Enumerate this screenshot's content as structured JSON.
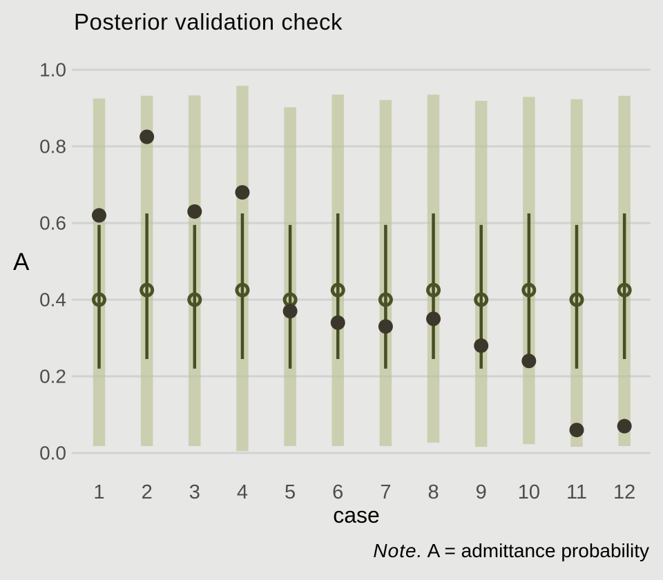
{
  "title": "Posterior validation check",
  "y_axis": {
    "label": "A"
  },
  "x_axis": {
    "label": "case"
  },
  "note": {
    "prefix_italic": "Note.",
    "text": " A = admittance probability"
  },
  "colors": {
    "background": "#e7e7e6",
    "gridline": "#d2d2d2",
    "outer_interval_bar": "#bcc194",
    "inner_interval_line": "#454e24",
    "median_circle": "#4a5226",
    "observed_dot": "#3b382b",
    "tick_text": "#4d4d4d",
    "title_text": "#0a0a0a"
  },
  "chart_data": {
    "type": "interval-dot",
    "title": "Posterior validation check",
    "xlabel": "case",
    "ylabel": "A",
    "ylim": [
      0,
      1
    ],
    "grid": true,
    "x": [
      1,
      2,
      3,
      4,
      5,
      6,
      7,
      8,
      9,
      10,
      11,
      12
    ],
    "x_tick_labels": [
      "1",
      "2",
      "3",
      "4",
      "5",
      "6",
      "7",
      "8",
      "9",
      "10",
      "11",
      "12"
    ],
    "y_ticks": [
      {
        "label": "0.0",
        "value": 0.0
      },
      {
        "label": "0.2",
        "value": 0.2
      },
      {
        "label": "0.4",
        "value": 0.4
      },
      {
        "label": "0.6",
        "value": 0.6
      },
      {
        "label": "0.8",
        "value": 0.8
      },
      {
        "label": "1.0",
        "value": 1.0
      }
    ],
    "series": [
      {
        "name": "outer interval (wide bar)",
        "type": "interval",
        "lo": [
          0.018,
          0.018,
          0.018,
          0.005,
          0.018,
          0.018,
          0.018,
          0.027,
          0.016,
          0.023,
          0.016,
          0.018
        ],
        "hi": [
          0.925,
          0.932,
          0.933,
          0.958,
          0.902,
          0.935,
          0.921,
          0.935,
          0.919,
          0.929,
          0.923,
          0.932
        ]
      },
      {
        "name": "inner interval (thin line)",
        "type": "interval",
        "lo": [
          0.22,
          0.245,
          0.22,
          0.245,
          0.22,
          0.245,
          0.22,
          0.245,
          0.22,
          0.245,
          0.22,
          0.245
        ],
        "hi": [
          0.595,
          0.625,
          0.595,
          0.625,
          0.595,
          0.625,
          0.595,
          0.625,
          0.595,
          0.625,
          0.595,
          0.625
        ]
      },
      {
        "name": "posterior median (open circle)",
        "type": "point",
        "values": [
          0.4,
          0.425,
          0.4,
          0.425,
          0.4,
          0.425,
          0.4,
          0.425,
          0.4,
          0.425,
          0.4,
          0.425
        ]
      },
      {
        "name": "observed (filled dot)",
        "type": "point",
        "values": [
          0.62,
          0.825,
          0.63,
          0.68,
          0.37,
          0.34,
          0.33,
          0.35,
          0.28,
          0.24,
          0.06,
          0.07
        ]
      }
    ],
    "note": "Note. A = admittance probability"
  }
}
